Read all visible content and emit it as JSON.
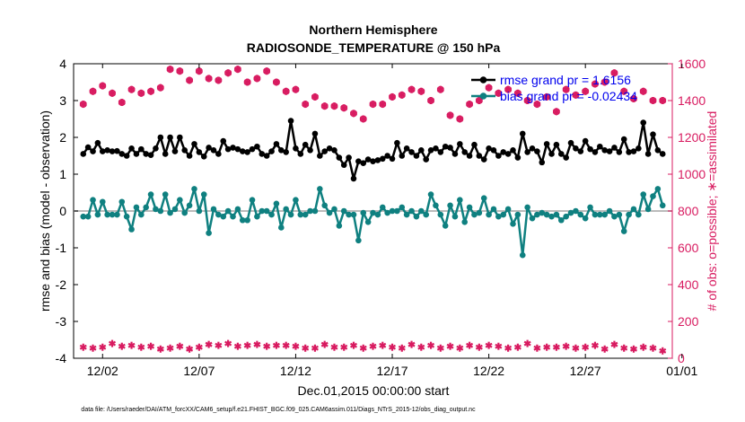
{
  "chart_data": {
    "type": "line",
    "title": "Northern Hemisphere",
    "subtitle": "RADIOSONDE_TEMPERATURE @ 150 hPa",
    "xlabel": "Dec.01,2015 00:00:00 start",
    "ylabel_left": "rmse and bias (model - observation)",
    "ylabel_right": "# of obs: o=possible; ∗=assimilated",
    "footnote": "data file: /Users/raeder/DAI/ATM_forcXX/CAM6_setup/f.e21.FHIST_BGC.f09_025.CAM6assim.011/Diags_NTrS_2015-12/obs_diag_output.nc",
    "xlim": [
      0.5,
      31.5
    ],
    "ylim_left": [
      -4,
      4
    ],
    "ylim_right": [
      0,
      1600
    ],
    "x_tick_positions": [
      2,
      7,
      12,
      17,
      22,
      27,
      32
    ],
    "x_tick_labels": [
      "12/02",
      "12/07",
      "12/12",
      "12/17",
      "12/22",
      "12/27",
      "01/01"
    ],
    "y_left_ticks": [
      -4,
      -3,
      -2,
      -1,
      0,
      1,
      2,
      3,
      4
    ],
    "y_right_ticks": [
      0,
      200,
      400,
      600,
      800,
      1000,
      1200,
      1400,
      1600
    ],
    "grid": false,
    "legend_location": "top-right",
    "zero_line": 0,
    "colors": {
      "rmse": "#000000",
      "bias": "#0f8080",
      "obs": "#d81b60",
      "zero_line": "#bbbbbb",
      "legend_text": "#0000ee"
    },
    "series": [
      {
        "name": "rmse",
        "legend_label": "rmse grand pr = 1.6156",
        "x": [
          1.0,
          1.25,
          1.5,
          1.75,
          2.0,
          2.25,
          2.5,
          2.75,
          3.0,
          3.25,
          3.5,
          3.75,
          4.0,
          4.25,
          4.5,
          4.75,
          5.0,
          5.25,
          5.5,
          5.75,
          6.0,
          6.25,
          6.5,
          6.75,
          7.0,
          7.25,
          7.5,
          7.75,
          8.0,
          8.25,
          8.5,
          8.75,
          9.0,
          9.25,
          9.5,
          9.75,
          10.0,
          10.25,
          10.5,
          10.75,
          11.0,
          11.25,
          11.5,
          11.75,
          12.0,
          12.25,
          12.5,
          12.75,
          13.0,
          13.25,
          13.5,
          13.75,
          14.0,
          14.25,
          14.5,
          14.75,
          15.0,
          15.25,
          15.5,
          15.75,
          16.0,
          16.25,
          16.5,
          16.75,
          17.0,
          17.25,
          17.5,
          17.75,
          18.0,
          18.25,
          18.5,
          18.75,
          19.0,
          19.25,
          19.5,
          19.75,
          20.0,
          20.25,
          20.5,
          20.75,
          21.0,
          21.25,
          21.5,
          21.75,
          22.0,
          22.25,
          22.5,
          22.75,
          23.0,
          23.25,
          23.5,
          23.75,
          24.0,
          24.25,
          24.5,
          24.75,
          25.0,
          25.25,
          25.5,
          25.75,
          26.0,
          26.25,
          26.5,
          26.75,
          27.0,
          27.25,
          27.5,
          27.75,
          28.0,
          28.25,
          28.5,
          28.75,
          29.0,
          29.25,
          29.5,
          29.75,
          30.0,
          30.25,
          30.5,
          30.75,
          31.0
        ],
        "values": [
          1.55,
          1.73,
          1.62,
          1.85,
          1.62,
          1.65,
          1.62,
          1.63,
          1.55,
          1.5,
          1.7,
          1.55,
          1.68,
          1.55,
          1.52,
          1.7,
          2.0,
          1.55,
          2.0,
          1.62,
          2.0,
          1.65,
          1.5,
          1.82,
          1.6,
          1.48,
          1.72,
          1.65,
          1.55,
          1.9,
          1.68,
          1.72,
          1.68,
          1.62,
          1.6,
          1.68,
          1.75,
          1.55,
          1.5,
          1.62,
          1.82,
          1.65,
          1.6,
          2.45,
          1.7,
          1.55,
          1.8,
          1.65,
          2.1,
          1.5,
          1.62,
          1.7,
          1.65,
          1.45,
          1.25,
          1.45,
          0.88,
          1.35,
          1.3,
          1.4,
          1.35,
          1.38,
          1.42,
          1.5,
          1.42,
          1.85,
          1.5,
          1.7,
          1.6,
          1.5,
          1.65,
          1.4,
          1.65,
          1.7,
          1.6,
          1.75,
          1.72,
          1.55,
          1.82,
          1.6,
          1.5,
          1.8,
          1.5,
          1.4,
          1.7,
          1.65,
          1.5,
          1.6,
          1.55,
          1.65,
          1.45,
          2.1,
          1.6,
          1.7,
          1.62,
          1.32,
          1.82,
          1.55,
          1.8,
          1.55,
          1.45,
          1.85,
          1.7,
          1.62,
          1.9,
          1.68,
          1.6,
          1.75,
          1.65,
          1.62,
          1.72,
          1.6,
          1.95,
          1.6,
          1.62,
          1.7,
          2.4,
          1.55,
          2.08,
          1.65,
          1.55
        ],
        "marker": "filled-circle"
      },
      {
        "name": "bias",
        "legend_label": "bias grand pr = -0.02434",
        "x": [
          1.0,
          1.25,
          1.5,
          1.75,
          2.0,
          2.25,
          2.5,
          2.75,
          3.0,
          3.25,
          3.5,
          3.75,
          4.0,
          4.25,
          4.5,
          4.75,
          5.0,
          5.25,
          5.5,
          5.75,
          6.0,
          6.25,
          6.5,
          6.75,
          7.0,
          7.25,
          7.5,
          7.75,
          8.0,
          8.25,
          8.5,
          8.75,
          9.0,
          9.25,
          9.5,
          9.75,
          10.0,
          10.25,
          10.5,
          10.75,
          11.0,
          11.25,
          11.5,
          11.75,
          12.0,
          12.25,
          12.5,
          12.75,
          13.0,
          13.25,
          13.5,
          13.75,
          14.0,
          14.25,
          14.5,
          14.75,
          15.0,
          15.25,
          15.5,
          15.75,
          16.0,
          16.25,
          16.5,
          16.75,
          17.0,
          17.25,
          17.5,
          17.75,
          18.0,
          18.25,
          18.5,
          18.75,
          19.0,
          19.25,
          19.5,
          19.75,
          20.0,
          20.25,
          20.5,
          20.75,
          21.0,
          21.25,
          21.5,
          21.75,
          22.0,
          22.25,
          22.5,
          22.75,
          23.0,
          23.25,
          23.5,
          23.75,
          24.0,
          24.25,
          24.5,
          24.75,
          25.0,
          25.25,
          25.5,
          25.75,
          26.0,
          26.25,
          26.5,
          26.75,
          27.0,
          27.25,
          27.5,
          27.75,
          28.0,
          28.25,
          28.5,
          28.75,
          29.0,
          29.25,
          29.5,
          29.75,
          30.0,
          30.25,
          30.5,
          30.75,
          31.0
        ],
        "values": [
          -0.15,
          -0.15,
          0.3,
          -0.1,
          0.25,
          -0.1,
          -0.1,
          -0.1,
          0.25,
          -0.15,
          -0.5,
          0.1,
          -0.1,
          0.1,
          0.45,
          0.05,
          0.0,
          0.45,
          -0.05,
          0.05,
          0.3,
          -0.05,
          0.15,
          0.6,
          0.0,
          0.45,
          -0.6,
          0.05,
          -0.1,
          -0.15,
          0.0,
          -0.15,
          0.05,
          -0.25,
          -0.25,
          0.3,
          -0.15,
          0.0,
          0.0,
          -0.1,
          0.2,
          -0.45,
          0.05,
          -0.1,
          0.3,
          -0.1,
          -0.1,
          0.0,
          0.0,
          0.6,
          0.15,
          -0.05,
          0.05,
          -0.4,
          0.0,
          -0.1,
          -0.1,
          -0.8,
          -0.05,
          -0.3,
          -0.05,
          -0.1,
          0.1,
          -0.05,
          0.0,
          0.0,
          0.1,
          -0.1,
          0.0,
          -0.15,
          0.0,
          -0.1,
          0.45,
          0.15,
          -0.1,
          -0.4,
          0.15,
          -0.15,
          0.3,
          -0.3,
          0.1,
          -0.1,
          -0.05,
          0.35,
          -0.1,
          0.05,
          -0.15,
          -0.1,
          0.05,
          -0.35,
          -0.1,
          -1.2,
          0.1,
          -0.2,
          -0.1,
          -0.05,
          -0.1,
          -0.15,
          -0.1,
          -0.25,
          -0.15,
          -0.05,
          0.0,
          -0.1,
          -0.2,
          0.1,
          -0.1,
          -0.1,
          -0.1,
          0.0,
          -0.15,
          -0.1,
          -0.55,
          -0.1,
          0.05,
          -0.1,
          0.45,
          0.05,
          0.4,
          0.6,
          0.15
        ],
        "marker": "filled-circle"
      },
      {
        "name": "obs_possible",
        "axis": "right",
        "x": [
          1.0,
          1.5,
          2.0,
          2.5,
          3.0,
          3.5,
          4.0,
          4.5,
          5.0,
          5.5,
          6.0,
          6.5,
          7.0,
          7.5,
          8.0,
          8.5,
          9.0,
          9.5,
          10.0,
          10.5,
          11.0,
          11.5,
          12.0,
          12.5,
          13.0,
          13.5,
          14.0,
          14.5,
          15.0,
          15.5,
          16.0,
          16.5,
          17.0,
          17.5,
          18.0,
          18.5,
          19.0,
          19.5,
          20.0,
          20.5,
          21.0,
          21.5,
          22.0,
          22.5,
          23.0,
          23.5,
          24.0,
          24.5,
          25.0,
          25.5,
          26.0,
          26.5,
          27.0,
          27.5,
          28.0,
          28.5,
          29.0,
          29.5,
          30.0,
          30.5,
          31.0
        ],
        "values": [
          1380,
          1450,
          1480,
          1440,
          1390,
          1460,
          1440,
          1450,
          1470,
          1570,
          1560,
          1510,
          1560,
          1520,
          1510,
          1550,
          1570,
          1500,
          1520,
          1560,
          1500,
          1450,
          1460,
          1380,
          1420,
          1370,
          1370,
          1360,
          1330,
          1300,
          1380,
          1380,
          1420,
          1430,
          1460,
          1450,
          1400,
          1460,
          1320,
          1300,
          1380,
          1400,
          1470,
          1440,
          1460,
          1440,
          1400,
          1380,
          1420,
          1340,
          1460,
          1430,
          1450,
          1490,
          1500,
          1550,
          1450,
          1410,
          1450,
          1400,
          1400
        ],
        "marker": "open-circle"
      },
      {
        "name": "obs_assimilated",
        "axis": "right",
        "x": [
          1.0,
          1.5,
          2.0,
          2.5,
          3.0,
          3.5,
          4.0,
          4.5,
          5.0,
          5.5,
          6.0,
          6.5,
          7.0,
          7.5,
          8.0,
          8.5,
          9.0,
          9.5,
          10.0,
          10.5,
          11.0,
          11.5,
          12.0,
          12.5,
          13.0,
          13.5,
          14.0,
          14.5,
          15.0,
          15.5,
          16.0,
          16.5,
          17.0,
          17.5,
          18.0,
          18.5,
          19.0,
          19.5,
          20.0,
          20.5,
          21.0,
          21.5,
          22.0,
          22.5,
          23.0,
          23.5,
          24.0,
          24.5,
          25.0,
          25.5,
          26.0,
          26.5,
          27.0,
          27.5,
          28.0,
          28.5,
          29.0,
          29.5,
          30.0,
          30.5,
          31.0
        ],
        "values": [
          60,
          55,
          60,
          80,
          65,
          70,
          60,
          65,
          50,
          55,
          65,
          50,
          60,
          75,
          70,
          80,
          65,
          70,
          75,
          65,
          70,
          70,
          65,
          55,
          55,
          75,
          60,
          60,
          70,
          55,
          65,
          70,
          60,
          55,
          75,
          60,
          70,
          55,
          65,
          55,
          70,
          60,
          70,
          65,
          55,
          60,
          80,
          55,
          60,
          60,
          65,
          55,
          60,
          70,
          50,
          75,
          55,
          50,
          60,
          55,
          40
        ],
        "marker": "asterisk"
      }
    ]
  }
}
